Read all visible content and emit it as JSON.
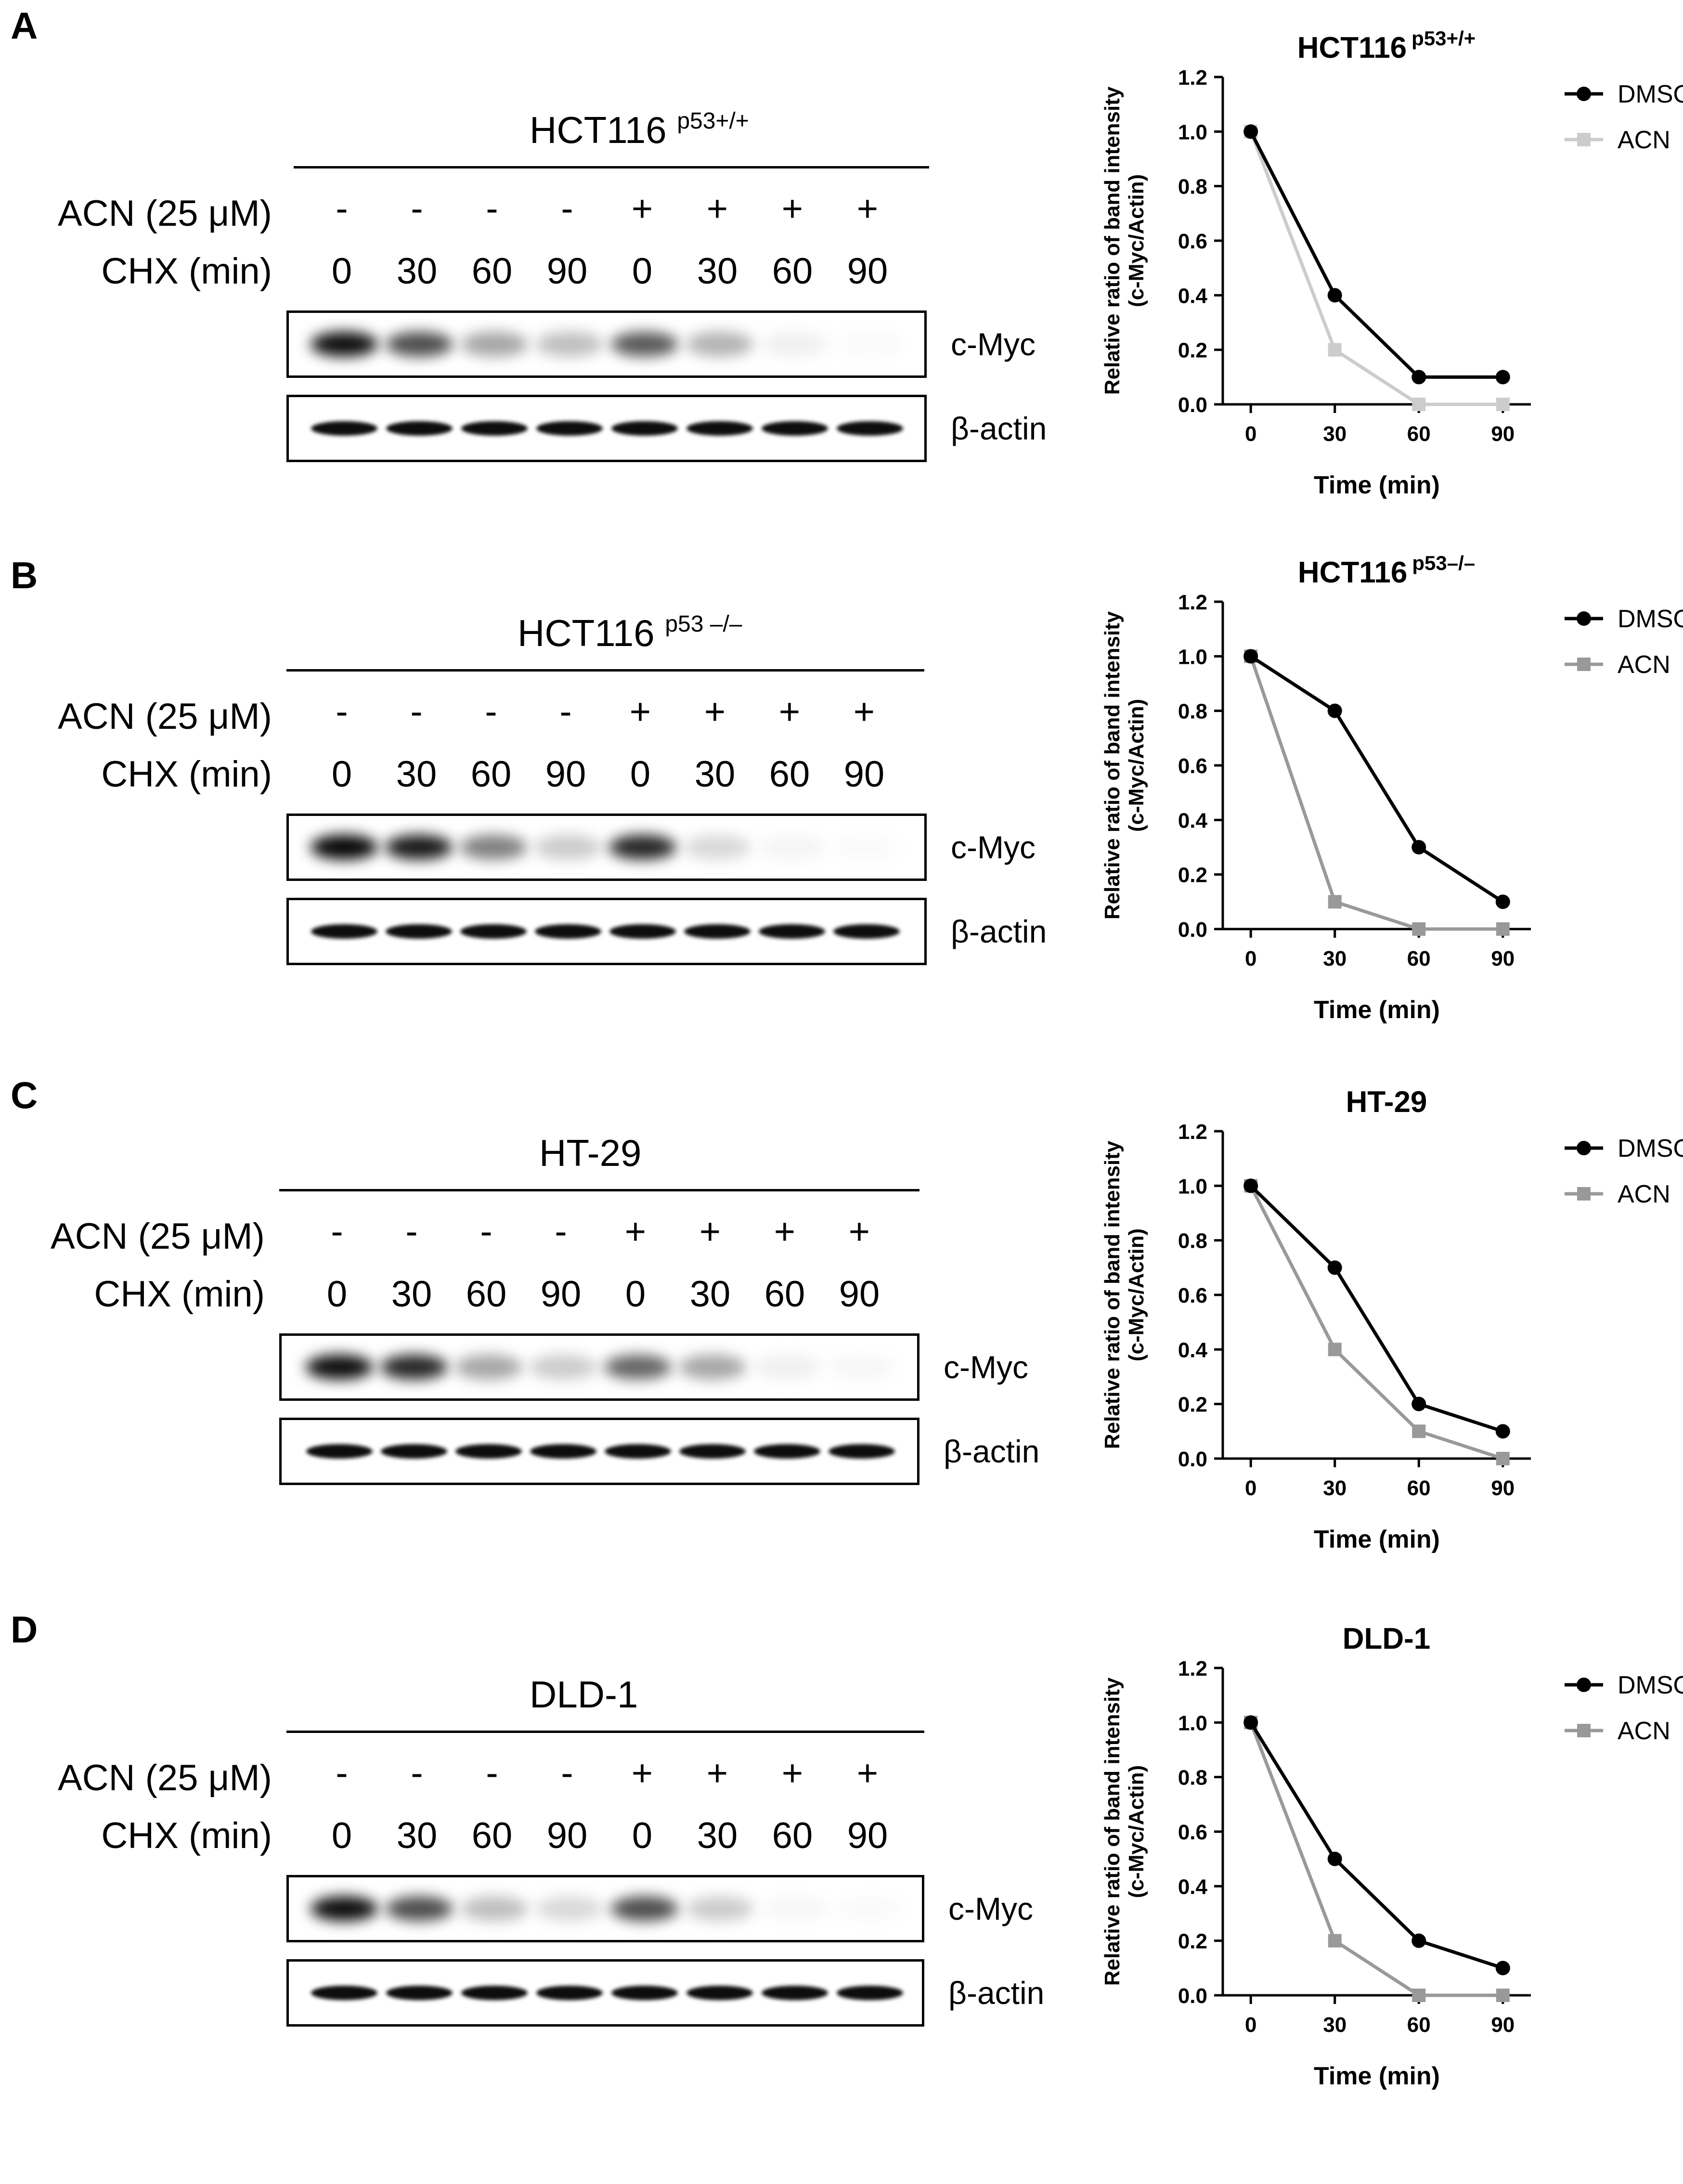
{
  "figure": {
    "row_labels": {
      "acn": "ACN (25 μM)",
      "chx": "CHX (min)"
    },
    "band_labels": {
      "cmyc": "c-Myc",
      "actin": "β-actin"
    },
    "panels": [
      {
        "letter": "A",
        "blot_title": "HCT116",
        "blot_sup": "p53+/+",
        "acn_signs": [
          "-",
          "-",
          "-",
          "-",
          "+",
          "+",
          "+",
          "+"
        ],
        "chx_values": [
          "0",
          "30",
          "60",
          "90",
          "0",
          "30",
          "60",
          "90"
        ],
        "cmyc_intensity": [
          0.95,
          0.7,
          0.35,
          0.25,
          0.65,
          0.3,
          0.06,
          0.02
        ],
        "actin_intensity": [
          0.95,
          0.95,
          0.95,
          0.95,
          0.95,
          0.95,
          0.95,
          0.95
        ]
      },
      {
        "letter": "B",
        "blot_title": "HCT116",
        "blot_sup": "p53 –/–",
        "acn_signs": [
          "-",
          "-",
          "-",
          "-",
          "+",
          "+",
          "+",
          "+"
        ],
        "chx_values": [
          "0",
          "30",
          "60",
          "90",
          "0",
          "30",
          "60",
          "90"
        ],
        "cmyc_intensity": [
          0.98,
          0.9,
          0.5,
          0.2,
          0.85,
          0.15,
          0.04,
          0.02
        ],
        "actin_intensity": [
          0.95,
          0.95,
          0.95,
          0.95,
          0.95,
          0.95,
          0.95,
          0.95
        ]
      },
      {
        "letter": "C",
        "blot_title": "HT-29",
        "blot_sup": "",
        "acn_signs": [
          "-",
          "-",
          "-",
          "-",
          "+",
          "+",
          "+",
          "+"
        ],
        "chx_values": [
          "0",
          "30",
          "60",
          "90",
          "0",
          "30",
          "60",
          "90"
        ],
        "cmyc_intensity": [
          0.95,
          0.85,
          0.35,
          0.2,
          0.6,
          0.35,
          0.06,
          0.03
        ],
        "actin_intensity": [
          0.95,
          0.95,
          0.95,
          0.95,
          0.95,
          0.95,
          0.95,
          0.95
        ]
      },
      {
        "letter": "D",
        "blot_title": "DLD-1",
        "blot_sup": "",
        "acn_signs": [
          "-",
          "-",
          "-",
          "-",
          "+",
          "+",
          "+",
          "+"
        ],
        "chx_values": [
          "0",
          "30",
          "60",
          "90",
          "0",
          "30",
          "60",
          "90"
        ],
        "cmyc_intensity": [
          0.95,
          0.7,
          0.25,
          0.15,
          0.7,
          0.2,
          0.03,
          0.02
        ],
        "actin_intensity": [
          0.95,
          0.95,
          0.95,
          0.95,
          0.95,
          0.95,
          0.95,
          0.95
        ]
      }
    ]
  },
  "chart_data": [
    {
      "type": "line",
      "title": "HCT116",
      "title_sup": "p53+/+",
      "xlabel": "Time (min)",
      "ylabel": "Relative ratio of band intensity",
      "ylabel2": "(c-Myc/Actin)",
      "x": [
        0,
        30,
        60,
        90
      ],
      "xticks": [
        "0",
        "30",
        "60",
        "90"
      ],
      "ylim": [
        0,
        1.2
      ],
      "yticks": [
        "0.0",
        "0.2",
        "0.4",
        "0.6",
        "0.8",
        "1.0",
        "1.2"
      ],
      "legend_position": "top-right",
      "series": [
        {
          "name": "DMSO",
          "values": [
            1.0,
            0.4,
            0.1,
            0.1
          ],
          "color": "#000000",
          "marker": "circle"
        },
        {
          "name": "ACN",
          "values": [
            1.0,
            0.2,
            0.0,
            0.0
          ],
          "color": "#cccccc",
          "marker": "square"
        }
      ]
    },
    {
      "type": "line",
      "title": "HCT116",
      "title_sup": "p53–/–",
      "xlabel": "Time (min)",
      "ylabel": "Relative ratio of band intensity",
      "ylabel2": "(c-Myc/Actin)",
      "x": [
        0,
        30,
        60,
        90
      ],
      "xticks": [
        "0",
        "30",
        "60",
        "90"
      ],
      "ylim": [
        0,
        1.2
      ],
      "yticks": [
        "0.0",
        "0.2",
        "0.4",
        "0.6",
        "0.8",
        "1.0",
        "1.2"
      ],
      "legend_position": "top-right",
      "series": [
        {
          "name": "DMSO",
          "values": [
            1.0,
            0.8,
            0.3,
            0.1
          ],
          "color": "#000000",
          "marker": "circle"
        },
        {
          "name": "ACN",
          "values": [
            1.0,
            0.1,
            0.0,
            0.0
          ],
          "color": "#999999",
          "marker": "square"
        }
      ]
    },
    {
      "type": "line",
      "title": "HT-29",
      "title_sup": "",
      "xlabel": "Time (min)",
      "ylabel": "Relative ratio of band intensity",
      "ylabel2": "(c-Myc/Actin)",
      "x": [
        0,
        30,
        60,
        90
      ],
      "xticks": [
        "0",
        "30",
        "60",
        "90"
      ],
      "ylim": [
        0,
        1.2
      ],
      "yticks": [
        "0.0",
        "0.2",
        "0.4",
        "0.6",
        "0.8",
        "1.0",
        "1.2"
      ],
      "legend_position": "top-right",
      "series": [
        {
          "name": "DMSO",
          "values": [
            1.0,
            0.7,
            0.2,
            0.1
          ],
          "color": "#000000",
          "marker": "circle"
        },
        {
          "name": "ACN",
          "values": [
            1.0,
            0.4,
            0.1,
            0.0
          ],
          "color": "#999999",
          "marker": "square"
        }
      ]
    },
    {
      "type": "line",
      "title": "DLD-1",
      "title_sup": "",
      "xlabel": "Time (min)",
      "ylabel": "Relative ratio of band intensity",
      "ylabel2": "(c-Myc/Actin)",
      "x": [
        0,
        30,
        60,
        90
      ],
      "xticks": [
        "0",
        "30",
        "60",
        "90"
      ],
      "ylim": [
        0,
        1.2
      ],
      "yticks": [
        "0.0",
        "0.2",
        "0.4",
        "0.6",
        "0.8",
        "1.0",
        "1.2"
      ],
      "legend_position": "top-right",
      "series": [
        {
          "name": "DMSO",
          "values": [
            1.0,
            0.5,
            0.2,
            0.1
          ],
          "color": "#000000",
          "marker": "circle"
        },
        {
          "name": "ACN",
          "values": [
            1.0,
            0.2,
            0.0,
            0.0
          ],
          "color": "#999999",
          "marker": "square"
        }
      ]
    }
  ]
}
